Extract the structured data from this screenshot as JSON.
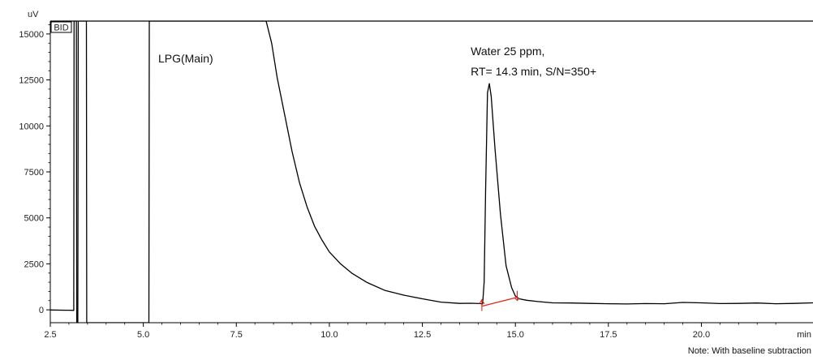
{
  "chart_data": {
    "type": "line",
    "detector_label": "BID",
    "ylabel": "uV",
    "xlabel": "min",
    "xlim": [
      2.5,
      23.0
    ],
    "ylim": [
      -700,
      15700
    ],
    "x_ticks": [
      {
        "value": 2.5,
        "label": "2.5"
      },
      {
        "value": 5.0,
        "label": "5.0"
      },
      {
        "value": 7.5,
        "label": "7.5"
      },
      {
        "value": 10.0,
        "label": "10.0"
      },
      {
        "value": 12.5,
        "label": "12.5"
      },
      {
        "value": 15.0,
        "label": "15.0"
      },
      {
        "value": 17.5,
        "label": "17.5"
      },
      {
        "value": 20.0,
        "label": "20.0"
      }
    ],
    "y_ticks": [
      {
        "value": 0,
        "label": "0"
      },
      {
        "value": 2500,
        "label": "2500"
      },
      {
        "value": 5000,
        "label": "5000"
      },
      {
        "value": 7500,
        "label": "7500"
      },
      {
        "value": 10000,
        "label": "10000"
      },
      {
        "value": 12500,
        "label": "12500"
      },
      {
        "value": 15000,
        "label": "15000"
      }
    ],
    "series": [
      {
        "color": "#000000",
        "points": [
          [
            2.5,
            -10
          ],
          [
            2.9,
            -20
          ],
          [
            3.0,
            -20
          ],
          [
            3.13,
            -30
          ],
          [
            3.14,
            15700
          ],
          [
            3.2,
            15700
          ],
          [
            3.21,
            -700
          ],
          [
            3.24,
            -700
          ],
          [
            3.25,
            15700
          ],
          [
            3.47,
            15700
          ],
          [
            3.48,
            -700
          ],
          [
            5.15,
            -700
          ],
          [
            5.16,
            15700
          ],
          [
            8.3,
            15700
          ],
          [
            8.45,
            14500
          ],
          [
            8.6,
            12600
          ],
          [
            8.8,
            10600
          ],
          [
            9.0,
            8600
          ],
          [
            9.2,
            6900
          ],
          [
            9.4,
            5600
          ],
          [
            9.6,
            4550
          ],
          [
            9.8,
            3800
          ],
          [
            10.0,
            3150
          ],
          [
            10.3,
            2500
          ],
          [
            10.6,
            2000
          ],
          [
            11.0,
            1500
          ],
          [
            11.5,
            1050
          ],
          [
            12.0,
            800
          ],
          [
            12.5,
            600
          ],
          [
            13.0,
            420
          ],
          [
            13.5,
            350
          ],
          [
            13.8,
            360
          ],
          [
            14.05,
            340
          ],
          [
            14.12,
            320
          ],
          [
            14.16,
            1500
          ],
          [
            14.2,
            6500
          ],
          [
            14.25,
            11800
          ],
          [
            14.3,
            12300
          ],
          [
            14.35,
            11600
          ],
          [
            14.45,
            8800
          ],
          [
            14.6,
            5200
          ],
          [
            14.75,
            2400
          ],
          [
            14.9,
            1200
          ],
          [
            15.0,
            750
          ],
          [
            15.1,
            600
          ],
          [
            15.3,
            520
          ],
          [
            15.6,
            450
          ],
          [
            16.0,
            380
          ],
          [
            16.5,
            370
          ],
          [
            17.0,
            350
          ],
          [
            17.5,
            330
          ],
          [
            18.0,
            320
          ],
          [
            18.5,
            340
          ],
          [
            19.0,
            330
          ],
          [
            19.5,
            400
          ],
          [
            20.0,
            380
          ],
          [
            20.5,
            340
          ],
          [
            21.0,
            350
          ],
          [
            21.5,
            370
          ],
          [
            22.0,
            330
          ],
          [
            22.5,
            350
          ],
          [
            23.0,
            380
          ]
        ]
      }
    ],
    "baseline": {
      "color": "#e02a17",
      "start": [
        14.1,
        200
      ],
      "end": [
        15.05,
        680
      ]
    },
    "annotations": [
      {
        "text": "LPG(Main)",
        "x": 5.4,
        "y": 13450
      },
      {
        "text": "Water 25 ppm,",
        "x": 13.8,
        "y": 13850
      },
      {
        "text": "RT= 14.3 min, S/N=350+",
        "x": 13.8,
        "y": 12750
      }
    ],
    "note": "Note:  With baseline subtraction"
  }
}
